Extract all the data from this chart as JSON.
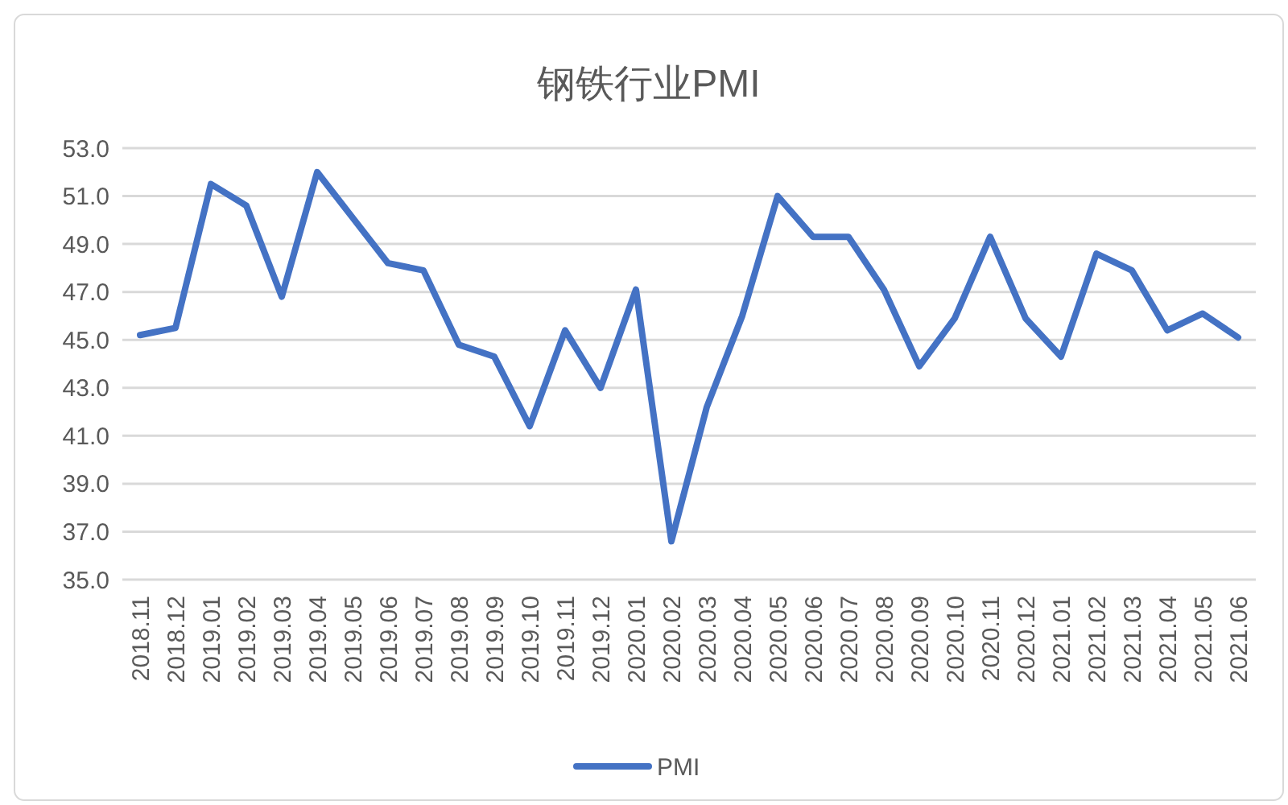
{
  "chart_data": {
    "type": "line",
    "title": "钢铁行业PMI",
    "categories": [
      "2018.11",
      "2018.12",
      "2019.01",
      "2019.02",
      "2019.03",
      "2019.04",
      "2019.05",
      "2019.06",
      "2019.07",
      "2019.08",
      "2019.09",
      "2019.10",
      "2019.11",
      "2019.12",
      "2020.01",
      "2020.02",
      "2020.03",
      "2020.04",
      "2020.05",
      "2020.06",
      "2020.07",
      "2020.08",
      "2020.09",
      "2020.10",
      "2020.11",
      "2020.12",
      "2021.01",
      "2021.02",
      "2021.03",
      "2021.04",
      "2021.05",
      "2021.06"
    ],
    "series": [
      {
        "name": "PMI",
        "color": "#4472c4",
        "values": [
          45.2,
          45.5,
          51.5,
          50.6,
          46.8,
          52.0,
          50.1,
          48.2,
          47.9,
          44.8,
          44.3,
          41.4,
          45.4,
          43.0,
          47.1,
          36.6,
          42.2,
          46.0,
          51.0,
          49.3,
          49.3,
          47.1,
          43.9,
          45.9,
          49.3,
          45.9,
          44.3,
          48.6,
          47.9,
          45.4,
          46.1,
          45.1
        ]
      }
    ],
    "ylim": [
      35,
      53
    ],
    "yticks": [
      {
        "value": 35,
        "label": "35.0"
      },
      {
        "value": 37,
        "label": "37.0"
      },
      {
        "value": 39,
        "label": "39.0"
      },
      {
        "value": 41,
        "label": "41.0"
      },
      {
        "value": 43,
        "label": "43.0"
      },
      {
        "value": 45,
        "label": "45.0"
      },
      {
        "value": 47,
        "label": "47.0"
      },
      {
        "value": 49,
        "label": "49.0"
      },
      {
        "value": 51,
        "label": "51.0"
      },
      {
        "value": 53,
        "label": "53.0"
      }
    ],
    "grid": "y",
    "legend": "bottom",
    "marker": "none",
    "line_style": "solid"
  }
}
